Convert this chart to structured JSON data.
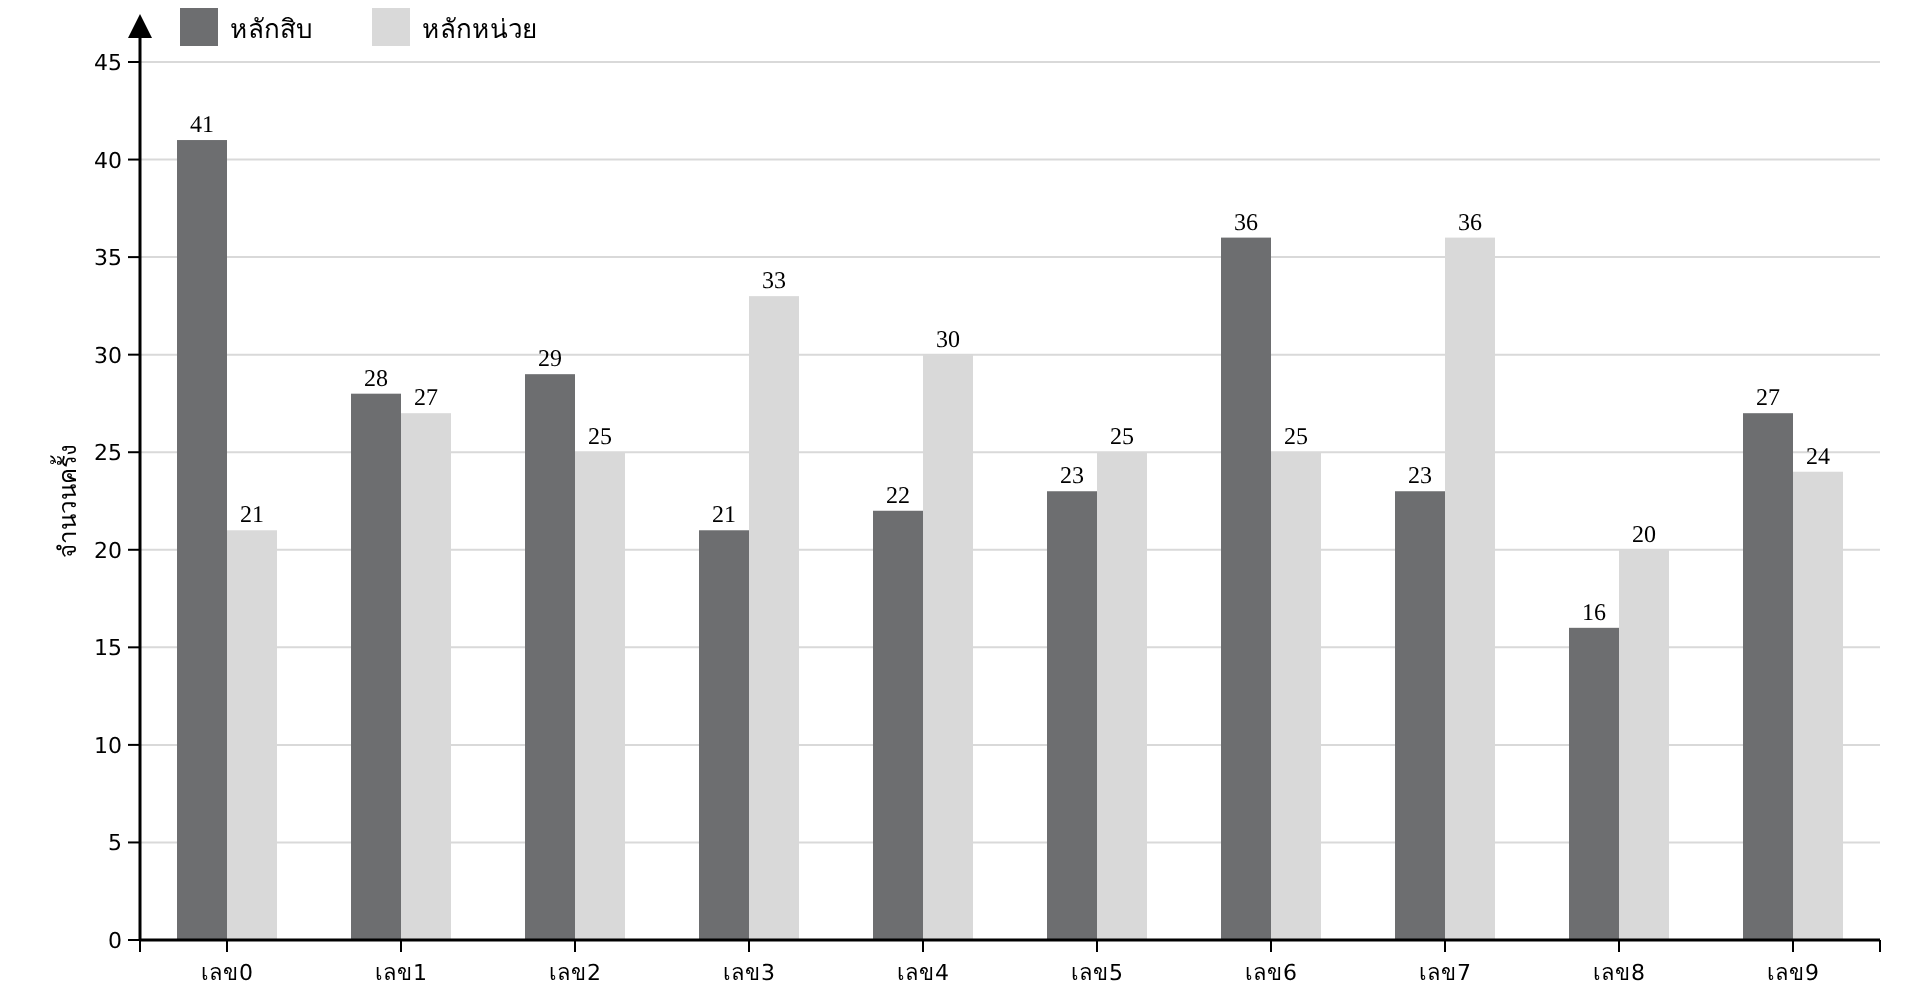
{
  "chart_data": {
    "type": "bar",
    "ylabel": "จำนวนครั้ง",
    "categories": [
      "เลข0",
      "เลข1",
      "เลข2",
      "เลข3",
      "เลข4",
      "เลข5",
      "เลข6",
      "เลข7",
      "เลข8",
      "เลข9"
    ],
    "series": [
      {
        "name": "หลักสิบ",
        "color": "#6d6e70",
        "values": [
          41,
          28,
          29,
          21,
          22,
          23,
          36,
          23,
          16,
          27
        ]
      },
      {
        "name": "หลักหน่วย",
        "color": "#d9d9d9",
        "values": [
          21,
          27,
          25,
          33,
          30,
          25,
          25,
          36,
          20,
          24
        ]
      }
    ],
    "ylim": [
      0,
      45
    ],
    "yticks": [
      0,
      5,
      10,
      15,
      20,
      25,
      30,
      35,
      40,
      45
    ],
    "grid": "y",
    "legend": "top left",
    "data_labels": true
  }
}
